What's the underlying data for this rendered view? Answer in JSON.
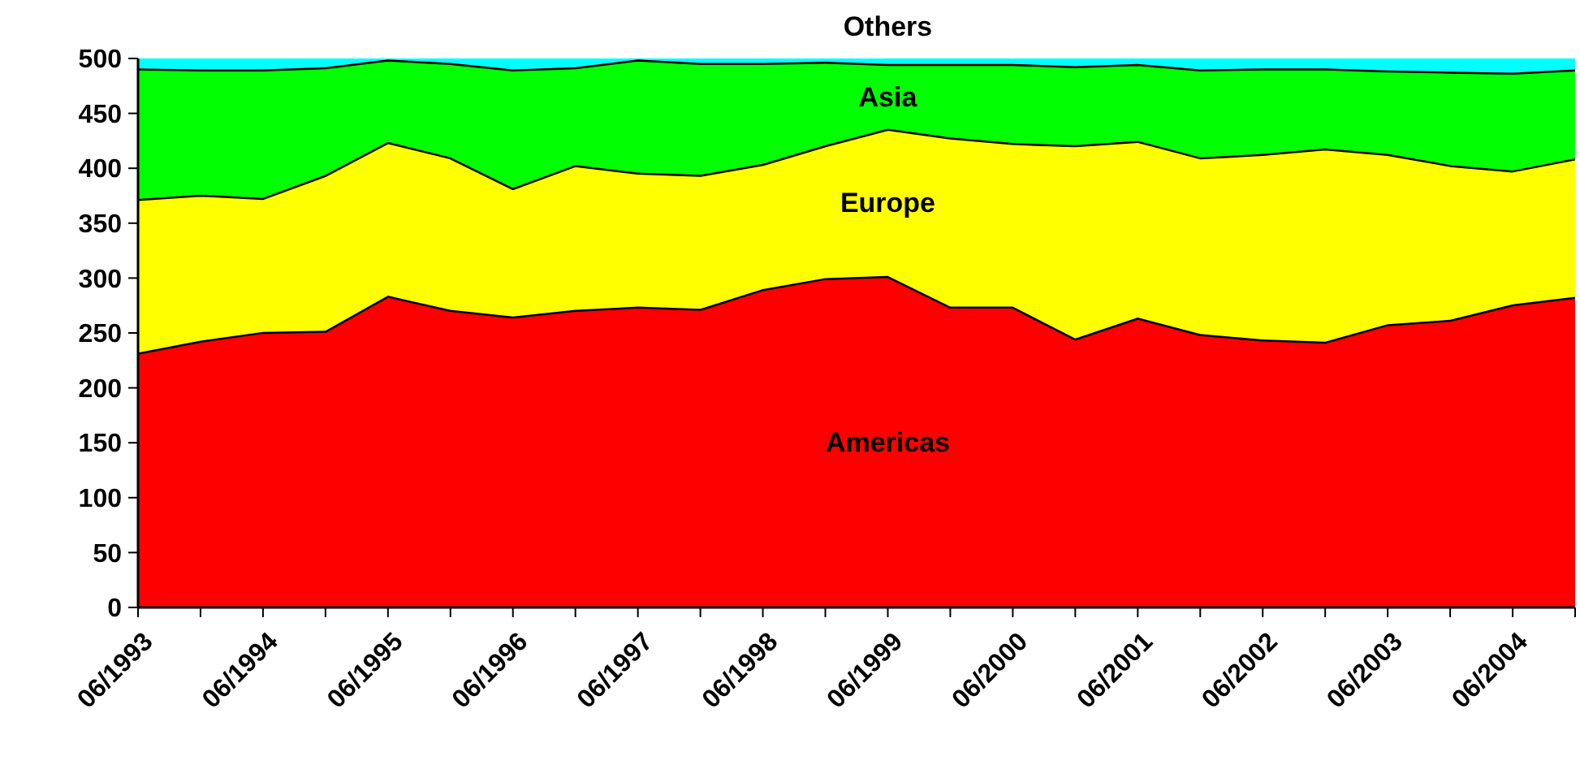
{
  "chart_data": {
    "type": "area",
    "stacked": true,
    "categories": [
      "06/1993",
      null,
      "06/1994",
      null,
      "06/1995",
      null,
      "06/1996",
      null,
      "06/1997",
      null,
      "06/1998",
      null,
      "06/1999",
      null,
      "06/2000",
      null,
      "06/2001",
      null,
      "06/2002",
      null,
      "06/2003",
      null,
      "06/2004",
      null
    ],
    "ylim": [
      0,
      500
    ],
    "yticks": [
      0,
      50,
      100,
      150,
      200,
      250,
      300,
      350,
      400,
      450,
      500
    ],
    "series": [
      {
        "name": "Americas",
        "color": "#ff0000",
        "values": [
          232,
          243,
          251,
          252,
          284,
          271,
          265,
          271,
          274,
          272,
          290,
          300,
          302,
          274,
          274,
          245,
          264,
          249,
          244,
          242,
          258,
          262,
          276,
          283
        ]
      },
      {
        "name": "Europe",
        "color": "#ffff00",
        "values": [
          140,
          133,
          122,
          142,
          140,
          139,
          117,
          132,
          122,
          122,
          114,
          121,
          134,
          154,
          149,
          176,
          161,
          161,
          169,
          176,
          155,
          141,
          122,
          126
        ]
      },
      {
        "name": "Asia",
        "color": "#00ff00",
        "values": [
          119,
          114,
          117,
          98,
          75,
          86,
          108,
          89,
          103,
          102,
          92,
          76,
          59,
          67,
          72,
          72,
          70,
          80,
          78,
          73,
          76,
          85,
          89,
          81
        ]
      },
      {
        "name": "Others",
        "color": "#00ffff",
        "values": [
          9,
          10,
          10,
          8,
          1,
          4,
          10,
          8,
          1,
          4,
          4,
          3,
          5,
          5,
          5,
          7,
          5,
          10,
          9,
          9,
          11,
          12,
          13,
          10
        ]
      }
    ]
  }
}
